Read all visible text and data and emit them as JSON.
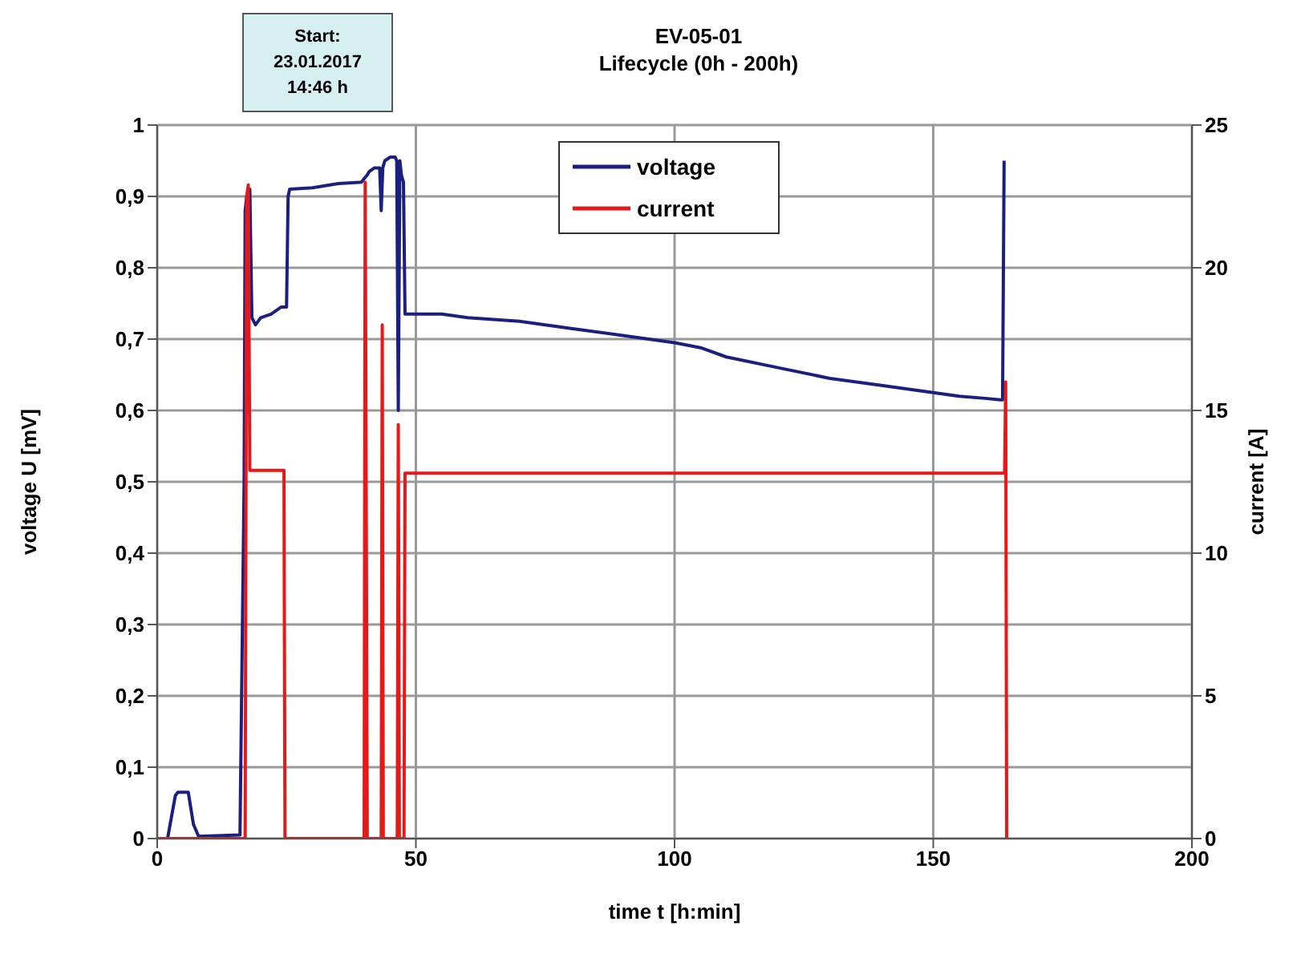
{
  "chart_data": {
    "type": "line",
    "title": "EV-05-01",
    "subtitle": "Lifecycle (0h - 200h)",
    "xlabel": "time t [h:min]",
    "ylabel": "voltage U [mV]",
    "y2label": "current [A]",
    "annotations": [
      "Start:\n23.01.2017\n14:46 h"
    ],
    "series": [
      {
        "name": "voltage",
        "color": "#1a1f80",
        "x": [
          0,
          2,
          3,
          3.5,
          4,
          6,
          7,
          8,
          16,
          16.8,
          17,
          17.3,
          17.6,
          17.9,
          18.3,
          19,
          20,
          22,
          24,
          25,
          25.3,
          25.6,
          30,
          35,
          39.5,
          40,
          40.6,
          41,
          42,
          43,
          43.3,
          43.6,
          44,
          45,
          46,
          46.3,
          46.6,
          46.9,
          47.2,
          47.6,
          47.9,
          48.2,
          55,
          60,
          70,
          80,
          90,
          100,
          105,
          110,
          120,
          130,
          140,
          150,
          155,
          160,
          163,
          163.4,
          163.7
        ],
        "values": [
          0,
          0,
          0.04,
          0.06,
          0.065,
          0.065,
          0.02,
          0.003,
          0.005,
          0.5,
          0.88,
          0.9,
          0.8,
          0.91,
          0.73,
          0.72,
          0.73,
          0.735,
          0.745,
          0.745,
          0.9,
          0.91,
          0.912,
          0.918,
          0.92,
          0.925,
          0.93,
          0.935,
          0.94,
          0.94,
          0.88,
          0.94,
          0.95,
          0.955,
          0.955,
          0.95,
          0.6,
          0.95,
          0.93,
          0.92,
          0.735,
          0.735,
          0.735,
          0.73,
          0.725,
          0.715,
          0.705,
          0.695,
          0.688,
          0.675,
          0.66,
          0.645,
          0.635,
          0.625,
          0.62,
          0.617,
          0.615,
          0.615,
          0.95
        ]
      },
      {
        "name": "current",
        "color": "#e41a1a",
        "axis": "y2",
        "x": [
          0,
          17,
          17.3,
          17.6,
          17.9,
          18.2,
          24.5,
          24.7,
          40,
          40.2,
          40.4,
          40.6,
          43.3,
          43.5,
          43.7,
          46.4,
          46.6,
          46.8,
          47.7,
          47.9,
          60,
          80,
          100,
          120,
          140,
          163.8,
          164,
          164.2
        ],
        "values": [
          0,
          0,
          22.5,
          22.9,
          12.9,
          12.9,
          12.9,
          0,
          0,
          23,
          12,
          0,
          0,
          18,
          0,
          0,
          14.5,
          0,
          0,
          12.8,
          12.8,
          12.8,
          12.8,
          12.8,
          12.8,
          12.8,
          16,
          0
        ]
      }
    ],
    "xlim": [
      0,
      200
    ],
    "xticks": [
      0,
      50,
      100,
      150,
      200
    ],
    "ylim": [
      0,
      1
    ],
    "yticks": [
      0,
      {
        "value": 0.1,
        "label": "0,1"
      },
      {
        "value": 0.2,
        "label": "0,2"
      },
      {
        "value": 0.3,
        "label": "0,3"
      },
      {
        "value": 0.4,
        "label": "0,4"
      },
      {
        "value": 0.5,
        "label": "0,5"
      },
      {
        "value": 0.6,
        "label": "0,6"
      },
      {
        "value": 0.7,
        "label": "0,7"
      },
      {
        "value": 0.8,
        "label": "0,8"
      },
      {
        "value": 0.9,
        "label": "0,9"
      },
      1
    ],
    "y2lim": [
      0,
      25
    ],
    "y2ticks": [
      0,
      5,
      10,
      15,
      20,
      25
    ],
    "grid": true,
    "legend": "top",
    "marker": "none",
    "line_style": "solid"
  }
}
